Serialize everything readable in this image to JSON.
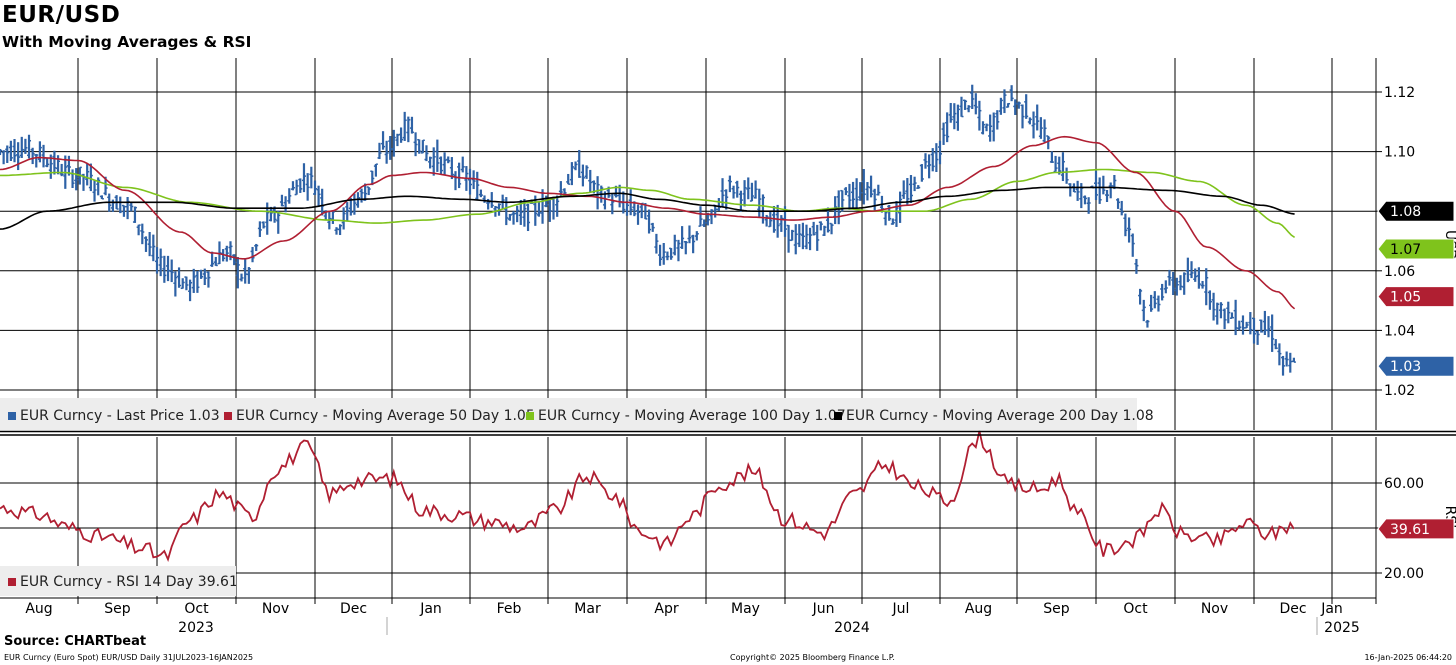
{
  "title": "EUR/USD",
  "subtitle": "With Moving Averages & RSI",
  "source": "Source: CHARTbeat",
  "footer": {
    "left": "EUR Curncy (Euro Spot) EUR/USD  Daily 31JUL2023-16JAN2025",
    "center": "Copyright© 2025 Bloomberg Finance L.P.",
    "right": "16-Jan-2025 06:44:20"
  },
  "colors": {
    "price": "#2e62a6",
    "ma50": "#b01f32",
    "ma100": "#7fc31c",
    "ma200": "#000000",
    "rsi": "#b01f32",
    "grid": "#000000"
  },
  "chart_data": [
    {
      "type": "line",
      "title": "EUR/USD",
      "ylabel": "USD",
      "ylim": [
        1.005,
        1.128
      ],
      "yticks": [
        "1.02",
        "1.04",
        "1.06",
        "1.08",
        "1.10",
        "1.12"
      ],
      "x_months": [
        "Aug",
        "Sep",
        "Oct",
        "Nov",
        "Dec",
        "Jan",
        "Feb",
        "Mar",
        "Apr",
        "May",
        "Jun",
        "Jul",
        "Aug",
        "Sep",
        "Oct",
        "Nov",
        "Dec",
        "Jan"
      ],
      "x_years": [
        "2023",
        "2024",
        "2025"
      ],
      "price_anchors": [
        [
          0,
          1.1
        ],
        [
          0.3,
          1.101
        ],
        [
          1.0,
          1.092
        ],
        [
          1.6,
          1.082
        ],
        [
          2.1,
          1.061
        ],
        [
          2.4,
          1.055
        ],
        [
          2.9,
          1.066
        ],
        [
          3.1,
          1.058
        ],
        [
          3.4,
          1.077
        ],
        [
          3.9,
          1.091
        ],
        [
          4.3,
          1.076
        ],
        [
          4.6,
          1.085
        ],
        [
          4.9,
          1.1
        ],
        [
          5.2,
          1.108
        ],
        [
          5.5,
          1.098
        ],
        [
          5.9,
          1.092
        ],
        [
          6.2,
          1.085
        ],
        [
          6.6,
          1.078
        ],
        [
          7.0,
          1.082
        ],
        [
          7.4,
          1.094
        ],
        [
          7.7,
          1.085
        ],
        [
          8.2,
          1.08
        ],
        [
          8.45,
          1.066
        ],
        [
          8.7,
          1.068
        ],
        [
          9.0,
          1.076
        ],
        [
          9.3,
          1.088
        ],
        [
          9.6,
          1.085
        ],
        [
          9.9,
          1.076
        ],
        [
          10.2,
          1.07
        ],
        [
          10.5,
          1.074
        ],
        [
          10.8,
          1.085
        ],
        [
          11.1,
          1.088
        ],
        [
          11.4,
          1.078
        ],
        [
          11.6,
          1.086
        ],
        [
          11.9,
          1.098
        ],
        [
          12.2,
          1.112
        ],
        [
          12.4,
          1.117
        ],
        [
          12.6,
          1.107
        ],
        [
          12.9,
          1.118
        ],
        [
          13.1,
          1.114
        ],
        [
          13.3,
          1.108
        ],
        [
          13.5,
          1.096
        ],
        [
          13.8,
          1.085
        ],
        [
          14.1,
          1.087
        ],
        [
          14.2,
          1.09
        ],
        [
          14.4,
          1.075
        ],
        [
          14.65,
          1.045
        ],
        [
          14.9,
          1.055
        ],
        [
          15.3,
          1.058
        ],
        [
          15.6,
          1.046
        ],
        [
          15.9,
          1.042
        ],
        [
          16.2,
          1.04
        ],
        [
          16.4,
          1.028
        ],
        [
          16.55,
          1.028
        ]
      ],
      "series": [
        {
          "name": "EUR Curncy - Last Price",
          "last": 1.03,
          "legend": "EUR Curncy - Last Price 1.03",
          "badge": "1.03",
          "color_key": "price"
        },
        {
          "name": "EUR Curncy - Moving Average 50 Day",
          "last": 1.05,
          "legend": "EUR Curncy - Moving Average 50 Day 1.05",
          "badge": "1.05",
          "color_key": "ma50",
          "anchors": [
            [
              0,
              1.094
            ],
            [
              0.5,
              1.098
            ],
            [
              1.0,
              1.097
            ],
            [
              1.6,
              1.087
            ],
            [
              2.3,
              1.073
            ],
            [
              2.7,
              1.066
            ],
            [
              3.1,
              1.064
            ],
            [
              3.6,
              1.07
            ],
            [
              4.2,
              1.08
            ],
            [
              4.7,
              1.089
            ],
            [
              5.0,
              1.092
            ],
            [
              5.4,
              1.093
            ],
            [
              6.0,
              1.091
            ],
            [
              6.5,
              1.088
            ],
            [
              7.0,
              1.086
            ],
            [
              7.5,
              1.085
            ],
            [
              8.0,
              1.083
            ],
            [
              8.5,
              1.081
            ],
            [
              9.0,
              1.079
            ],
            [
              9.6,
              1.078
            ],
            [
              10.1,
              1.077
            ],
            [
              10.6,
              1.078
            ],
            [
              11.1,
              1.08
            ],
            [
              11.6,
              1.082
            ],
            [
              12.1,
              1.088
            ],
            [
              12.7,
              1.095
            ],
            [
              13.2,
              1.102
            ],
            [
              13.6,
              1.105
            ],
            [
              14.0,
              1.103
            ],
            [
              14.5,
              1.093
            ],
            [
              15.0,
              1.08
            ],
            [
              15.4,
              1.068
            ],
            [
              15.9,
              1.06
            ],
            [
              16.3,
              1.053
            ],
            [
              16.55,
              1.047
            ]
          ]
        },
        {
          "name": "EUR Curncy - Moving Average 100 Day",
          "last": 1.07,
          "legend": "EUR Curncy - Moving Average 100 Day 1.07",
          "badge": "1.07",
          "color_key": "ma100",
          "anchors": [
            [
              0,
              1.092
            ],
            [
              0.8,
              1.093
            ],
            [
              1.6,
              1.088
            ],
            [
              2.4,
              1.083
            ],
            [
              3.3,
              1.08
            ],
            [
              4.2,
              1.077
            ],
            [
              4.8,
              1.076
            ],
            [
              5.4,
              1.077
            ],
            [
              6.1,
              1.079
            ],
            [
              6.8,
              1.083
            ],
            [
              7.4,
              1.086
            ],
            [
              7.9,
              1.088
            ],
            [
              8.3,
              1.087
            ],
            [
              8.8,
              1.084
            ],
            [
              9.6,
              1.082
            ],
            [
              10.2,
              1.08
            ],
            [
              10.7,
              1.081
            ],
            [
              11.2,
              1.08
            ],
            [
              11.8,
              1.08
            ],
            [
              12.4,
              1.084
            ],
            [
              13.0,
              1.09
            ],
            [
              13.5,
              1.093
            ],
            [
              14.1,
              1.094
            ],
            [
              14.7,
              1.093
            ],
            [
              15.3,
              1.09
            ],
            [
              15.9,
              1.082
            ],
            [
              16.3,
              1.076
            ],
            [
              16.55,
              1.071
            ]
          ]
        },
        {
          "name": "EUR Curncy - Moving Average 200 Day",
          "last": 1.08,
          "legend": "EUR Curncy - Moving Average 200 Day 1.08",
          "badge": "1.08",
          "color_key": "ma200",
          "anchors": [
            [
              0,
              1.074
            ],
            [
              0.6,
              1.08
            ],
            [
              1.4,
              1.083
            ],
            [
              2.2,
              1.083
            ],
            [
              3.0,
              1.081
            ],
            [
              3.8,
              1.081
            ],
            [
              4.6,
              1.084
            ],
            [
              5.2,
              1.085
            ],
            [
              5.9,
              1.084
            ],
            [
              6.5,
              1.083
            ],
            [
              7.3,
              1.085
            ],
            [
              7.9,
              1.086
            ],
            [
              8.4,
              1.084
            ],
            [
              9.0,
              1.082
            ],
            [
              9.6,
              1.08
            ],
            [
              10.3,
              1.08
            ],
            [
              10.9,
              1.081
            ],
            [
              11.5,
              1.083
            ],
            [
              12.1,
              1.085
            ],
            [
              12.8,
              1.087
            ],
            [
              13.4,
              1.088
            ],
            [
              14.1,
              1.088
            ],
            [
              14.9,
              1.087
            ],
            [
              15.6,
              1.085
            ],
            [
              16.1,
              1.082
            ],
            [
              16.55,
              1.079
            ]
          ]
        }
      ]
    },
    {
      "type": "line",
      "title": "RSI",
      "ylabel": "RSI",
      "ylim": [
        10,
        80
      ],
      "yticks": [
        "20.00",
        "40.00",
        "60.00"
      ],
      "series": [
        {
          "name": "EUR Curncy - RSI 14 Day",
          "last": 39.61,
          "legend": "EUR Curncy - RSI 14 Day 39.61",
          "badge": "39.61",
          "color_key": "rsi",
          "anchors": [
            [
              0,
              49
            ],
            [
              0.5,
              46
            ],
            [
              0.9,
              40
            ],
            [
              1.3,
              36
            ],
            [
              1.8,
              31
            ],
            [
              2.1,
              27
            ],
            [
              2.4,
              43
            ],
            [
              2.8,
              55
            ],
            [
              3.2,
              45
            ],
            [
              3.5,
              66
            ],
            [
              3.9,
              76
            ],
            [
              4.2,
              55
            ],
            [
              4.5,
              61
            ],
            [
              5.0,
              62
            ],
            [
              5.4,
              48
            ],
            [
              5.8,
              46
            ],
            [
              6.2,
              43
            ],
            [
              6.7,
              40
            ],
            [
              7.1,
              48
            ],
            [
              7.5,
              63
            ],
            [
              7.8,
              55
            ],
            [
              8.2,
              38
            ],
            [
              8.5,
              33
            ],
            [
              8.8,
              45
            ],
            [
              9.2,
              60
            ],
            [
              9.6,
              65
            ],
            [
              10.0,
              44
            ],
            [
              10.5,
              38
            ],
            [
              10.9,
              55
            ],
            [
              11.3,
              68
            ],
            [
              11.7,
              58
            ],
            [
              12.1,
              52
            ],
            [
              12.5,
              80
            ],
            [
              12.9,
              59
            ],
            [
              13.3,
              57
            ],
            [
              13.5,
              62
            ],
            [
              13.8,
              45
            ],
            [
              14.1,
              30
            ],
            [
              14.5,
              35
            ],
            [
              14.8,
              48
            ],
            [
              15.1,
              37
            ],
            [
              15.5,
              34
            ],
            [
              15.9,
              42
            ],
            [
              16.2,
              37
            ],
            [
              16.45,
              41
            ],
            [
              16.55,
              40
            ]
          ]
        }
      ]
    }
  ]
}
